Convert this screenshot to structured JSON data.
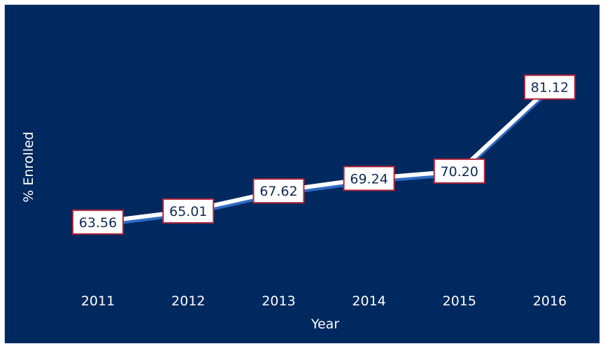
{
  "chart_data": {
    "type": "line",
    "title": "",
    "xlabel": "Year",
    "ylabel": "% Enrolled",
    "categories": [
      "2011",
      "2012",
      "2013",
      "2014",
      "2015",
      "2016"
    ],
    "series": [
      {
        "values": [
          63.56,
          65.01,
          67.62,
          69.24,
          70.2,
          81.12
        ]
      }
    ],
    "data_labels": [
      "63.56",
      "65.01",
      "67.62",
      "69.24",
      "70.20",
      "81.12"
    ],
    "ylim": [
      50,
      90
    ],
    "grid": false,
    "legend": "none",
    "colors": {
      "background": "#00295f",
      "line": "#ffffff",
      "line_shadow": "#2f6bc2",
      "label_fill": "#ffffff",
      "label_border": "#b3233a",
      "label_text": "#0f2a55",
      "drop_line": "#c8d0dc",
      "text": "#ffffff"
    }
  }
}
